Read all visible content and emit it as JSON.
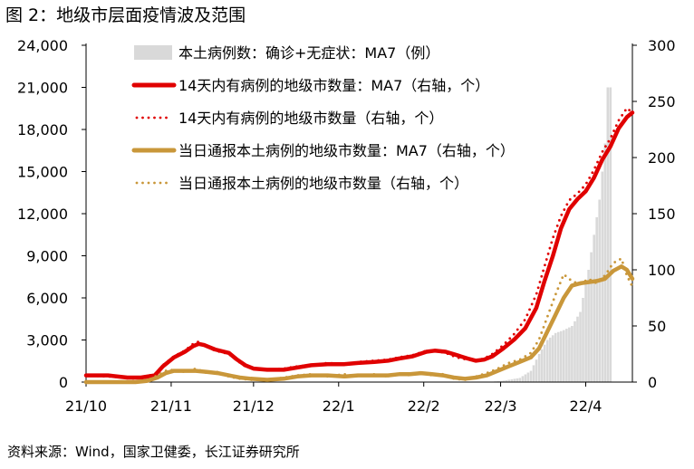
{
  "figure": {
    "title": "图 2：地级市层面疫情波及范围",
    "source": "资料来源：Wind，国家卫健委，长江证券研究所"
  },
  "chart_data": {
    "type": "bar",
    "x_ticks": [
      "21/10",
      "21/11",
      "21/12",
      "22/1",
      "22/2",
      "22/3",
      "22/4"
    ],
    "y_left": {
      "ticks": [
        "0",
        "3,000",
        "6,000",
        "9,000",
        "12,000",
        "15,000",
        "18,000",
        "21,000",
        "24,000"
      ],
      "ylim": [
        0,
        24000
      ]
    },
    "y_right": {
      "ticks": [
        "0",
        "50",
        "100",
        "150",
        "200",
        "250",
        "300"
      ],
      "ylim": [
        0,
        300
      ]
    },
    "grid": false,
    "legend_position": "top-center",
    "days": 191,
    "series": [
      {
        "name": "本土病例数：确诊+无症状：MA7（例）",
        "kind": "bar",
        "axis": "left",
        "color": "#d9d9d9",
        "points": [
          [
            0,
            0
          ],
          [
            146,
            0
          ],
          [
            152,
            100
          ],
          [
            158,
            300
          ],
          [
            162,
            800
          ],
          [
            165,
            2000
          ],
          [
            168,
            3000
          ],
          [
            171,
            3500
          ],
          [
            174,
            3700
          ],
          [
            177,
            4000
          ],
          [
            180,
            5000
          ],
          [
            183,
            8000
          ],
          [
            185,
            10500
          ],
          [
            187,
            13000
          ],
          [
            189,
            17000
          ],
          [
            190,
            21000
          ]
        ]
      },
      {
        "name": "14天内有病例的地级市数量：MA7（右轴，个）",
        "kind": "line",
        "axis": "right",
        "color": "#e00000",
        "points": [
          [
            0,
            6
          ],
          [
            8,
            6
          ],
          [
            15,
            4
          ],
          [
            20,
            4
          ],
          [
            25,
            6
          ],
          [
            28,
            14
          ],
          [
            32,
            22
          ],
          [
            36,
            27
          ],
          [
            39,
            32
          ],
          [
            41,
            34
          ],
          [
            43,
            33
          ],
          [
            47,
            29
          ],
          [
            52,
            26
          ],
          [
            55,
            20
          ],
          [
            58,
            15
          ],
          [
            61,
            12
          ],
          [
            66,
            11
          ],
          [
            72,
            11
          ],
          [
            77,
            13
          ],
          [
            82,
            15
          ],
          [
            88,
            16
          ],
          [
            94,
            16
          ],
          [
            99,
            17
          ],
          [
            105,
            18
          ],
          [
            110,
            19
          ],
          [
            114,
            21
          ],
          [
            119,
            23
          ],
          [
            124,
            27
          ],
          [
            127,
            28
          ],
          [
            131,
            27
          ],
          [
            135,
            24
          ],
          [
            139,
            21
          ],
          [
            142,
            19
          ],
          [
            145,
            20
          ],
          [
            148,
            23
          ],
          [
            152,
            30
          ],
          [
            156,
            38
          ],
          [
            160,
            48
          ],
          [
            164,
            66
          ],
          [
            167,
            90
          ],
          [
            170,
            112
          ],
          [
            173,
            137
          ],
          [
            176,
            154
          ],
          [
            179,
            163
          ],
          [
            182,
            170
          ],
          [
            185,
            182
          ],
          [
            188,
            198
          ],
          [
            191,
            210
          ],
          [
            194,
            226
          ],
          [
            197,
            236
          ],
          [
            199,
            240
          ]
        ]
      },
      {
        "name": "14天内有病例的地级市数量（右轴，个）",
        "kind": "line",
        "style": "dotted",
        "axis": "right",
        "color": "#e00000",
        "points": [
          [
            0,
            6
          ],
          [
            8,
            5
          ],
          [
            15,
            4
          ],
          [
            20,
            4
          ],
          [
            25,
            7
          ],
          [
            28,
            15
          ],
          [
            32,
            23
          ],
          [
            36,
            28
          ],
          [
            39,
            34
          ],
          [
            41,
            36
          ],
          [
            43,
            33
          ],
          [
            47,
            28
          ],
          [
            52,
            25
          ],
          [
            55,
            19
          ],
          [
            58,
            14
          ],
          [
            61,
            12
          ],
          [
            66,
            11
          ],
          [
            72,
            12
          ],
          [
            77,
            14
          ],
          [
            82,
            15
          ],
          [
            88,
            17
          ],
          [
            94,
            16
          ],
          [
            99,
            18
          ],
          [
            105,
            19
          ],
          [
            110,
            20
          ],
          [
            114,
            22
          ],
          [
            119,
            24
          ],
          [
            124,
            28
          ],
          [
            127,
            28
          ],
          [
            131,
            26
          ],
          [
            135,
            22
          ],
          [
            139,
            20
          ],
          [
            142,
            19
          ],
          [
            145,
            21
          ],
          [
            148,
            25
          ],
          [
            152,
            33
          ],
          [
            156,
            43
          ],
          [
            160,
            56
          ],
          [
            164,
            78
          ],
          [
            167,
            103
          ],
          [
            170,
            128
          ],
          [
            173,
            148
          ],
          [
            176,
            162
          ],
          [
            179,
            168
          ],
          [
            182,
            176
          ],
          [
            185,
            189
          ],
          [
            188,
            205
          ],
          [
            191,
            217
          ],
          [
            194,
            233
          ],
          [
            197,
            244
          ],
          [
            199,
            240
          ]
        ]
      },
      {
        "name": "当日通报本土病例的地级市数量：MA7（右轴，个）",
        "kind": "line",
        "axis": "right",
        "color": "#c9973a",
        "points": [
          [
            0,
            0
          ],
          [
            10,
            0
          ],
          [
            18,
            0
          ],
          [
            22,
            1
          ],
          [
            26,
            4
          ],
          [
            29,
            8
          ],
          [
            32,
            10
          ],
          [
            36,
            10
          ],
          [
            40,
            10
          ],
          [
            44,
            9
          ],
          [
            48,
            8
          ],
          [
            52,
            6
          ],
          [
            56,
            4
          ],
          [
            60,
            3
          ],
          [
            66,
            2
          ],
          [
            72,
            3
          ],
          [
            77,
            5
          ],
          [
            82,
            6
          ],
          [
            88,
            6
          ],
          [
            94,
            5
          ],
          [
            99,
            6
          ],
          [
            105,
            6
          ],
          [
            110,
            6
          ],
          [
            114,
            7
          ],
          [
            118,
            7
          ],
          [
            122,
            8
          ],
          [
            126,
            7
          ],
          [
            130,
            6
          ],
          [
            134,
            4
          ],
          [
            138,
            3
          ],
          [
            142,
            4
          ],
          [
            146,
            6
          ],
          [
            150,
            10
          ],
          [
            154,
            14
          ],
          [
            158,
            18
          ],
          [
            162,
            22
          ],
          [
            165,
            30
          ],
          [
            168,
            45
          ],
          [
            171,
            60
          ],
          [
            174,
            75
          ],
          [
            177,
            86
          ],
          [
            180,
            88
          ],
          [
            183,
            89
          ],
          [
            186,
            90
          ],
          [
            189,
            92
          ],
          [
            192,
            99
          ],
          [
            195,
            103
          ],
          [
            197,
            100
          ],
          [
            199,
            92
          ]
        ]
      },
      {
        "name": "当日通报本土病例的地级市数量（右轴，个）",
        "kind": "line",
        "style": "dotted",
        "axis": "right",
        "color": "#c9973a",
        "points": [
          [
            0,
            0
          ],
          [
            10,
            0
          ],
          [
            18,
            1
          ],
          [
            22,
            1
          ],
          [
            26,
            6
          ],
          [
            29,
            10
          ],
          [
            32,
            11
          ],
          [
            36,
            9
          ],
          [
            40,
            12
          ],
          [
            44,
            8
          ],
          [
            48,
            9
          ],
          [
            52,
            5
          ],
          [
            56,
            3
          ],
          [
            60,
            2
          ],
          [
            66,
            2
          ],
          [
            72,
            4
          ],
          [
            77,
            6
          ],
          [
            82,
            7
          ],
          [
            88,
            5
          ],
          [
            94,
            7
          ],
          [
            99,
            5
          ],
          [
            105,
            7
          ],
          [
            110,
            5
          ],
          [
            114,
            8
          ],
          [
            118,
            6
          ],
          [
            122,
            9
          ],
          [
            126,
            6
          ],
          [
            130,
            7
          ],
          [
            134,
            3
          ],
          [
            138,
            2
          ],
          [
            142,
            5
          ],
          [
            146,
            8
          ],
          [
            150,
            12
          ],
          [
            154,
            17
          ],
          [
            158,
            20
          ],
          [
            162,
            26
          ],
          [
            165,
            38
          ],
          [
            168,
            58
          ],
          [
            171,
            78
          ],
          [
            174,
            96
          ],
          [
            177,
            90
          ],
          [
            180,
            87
          ],
          [
            183,
            92
          ],
          [
            186,
            88
          ],
          [
            189,
            95
          ],
          [
            192,
            106
          ],
          [
            195,
            110
          ],
          [
            197,
            95
          ],
          [
            199,
            85
          ]
        ]
      }
    ]
  }
}
